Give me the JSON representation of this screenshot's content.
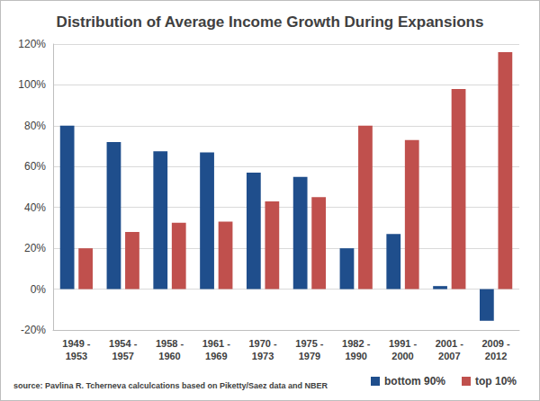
{
  "chart_data": {
    "type": "bar",
    "title": "Distribution of Average Income Growth During Expansions",
    "categories": [
      "1949 - 1953",
      "1954 - 1957",
      "1958 - 1960",
      "1961 - 1969",
      "1970 - 1973",
      "1975 - 1979",
      "1982 - 1990",
      "1991 - 2000",
      "2001 - 2007",
      "2009 - 2012"
    ],
    "series": [
      {
        "name": "bottom 90%",
        "color": "#1f4e8c",
        "values": [
          80,
          72,
          67.5,
          67,
          57,
          55,
          20,
          27,
          1.5,
          -15.5
        ]
      },
      {
        "name": "top 10%",
        "color": "#c0504d",
        "values": [
          20,
          28,
          32.5,
          33,
          43,
          45,
          80,
          73,
          98,
          116
        ]
      }
    ],
    "ylim": [
      -20,
      120
    ],
    "yticks": [
      {
        "value": -20,
        "label": "-20%"
      },
      {
        "value": 0,
        "label": "0%"
      },
      {
        "value": 20,
        "label": "20%"
      },
      {
        "value": 40,
        "label": "40%"
      },
      {
        "value": 60,
        "label": "60%"
      },
      {
        "value": 80,
        "label": "80%"
      },
      {
        "value": 100,
        "label": "100%"
      },
      {
        "value": 120,
        "label": "120%"
      }
    ],
    "grid": true,
    "legend": "lower right",
    "annotations": [
      "source: Pavlina R. Tcherneva calculcations based on Piketty/Saez data and NBER"
    ]
  }
}
